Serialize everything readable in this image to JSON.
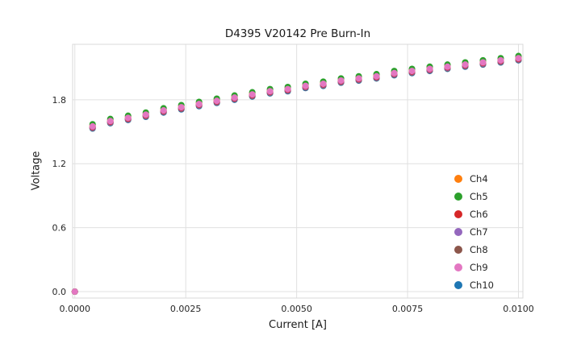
{
  "chart_data": {
    "type": "scatter",
    "title": "D4395 V20142 Pre Burn-In",
    "xlabel": "Current [A]",
    "ylabel": "Voltage",
    "xlim": [
      -5e-05,
      0.0101
    ],
    "ylim": [
      -0.06,
      2.32
    ],
    "xticks": [
      0.0,
      0.0025,
      0.005,
      0.0075,
      0.01
    ],
    "xtick_labels": [
      "0.0000",
      "0.0025",
      "0.0050",
      "0.0075",
      "0.0100"
    ],
    "yticks": [
      0.0,
      0.6,
      1.2,
      1.8
    ],
    "ytick_labels": [
      "0.0",
      "0.6",
      "1.2",
      "1.8"
    ],
    "grid": true,
    "legend_position": "inside-right",
    "x": [
      0.0,
      0.0004,
      0.0008,
      0.0012,
      0.0016,
      0.002,
      0.0024,
      0.0028,
      0.0032,
      0.0036,
      0.004,
      0.0044,
      0.0048,
      0.0052,
      0.0056,
      0.006,
      0.0064,
      0.0068,
      0.0072,
      0.0076,
      0.008,
      0.0084,
      0.0088,
      0.0092,
      0.0096,
      0.01
    ],
    "series": [
      {
        "name": "Ch4",
        "color": "#ff7f0e",
        "values": [
          0.0,
          1.56,
          1.61,
          1.64,
          1.67,
          1.71,
          1.74,
          1.77,
          1.8,
          1.83,
          1.86,
          1.89,
          1.91,
          1.94,
          1.96,
          1.99,
          2.01,
          2.03,
          2.06,
          2.08,
          2.1,
          2.12,
          2.14,
          2.16,
          2.18,
          2.2
        ]
      },
      {
        "name": "Ch5",
        "color": "#2ca02c",
        "values": [
          0.0,
          1.57,
          1.62,
          1.65,
          1.68,
          1.72,
          1.75,
          1.78,
          1.81,
          1.84,
          1.87,
          1.9,
          1.92,
          1.95,
          1.97,
          2.0,
          2.02,
          2.04,
          2.07,
          2.09,
          2.11,
          2.13,
          2.15,
          2.17,
          2.19,
          2.21
        ]
      },
      {
        "name": "Ch6",
        "color": "#d62728",
        "values": [
          0.0,
          1.545,
          1.595,
          1.625,
          1.655,
          1.695,
          1.725,
          1.755,
          1.785,
          1.815,
          1.845,
          1.875,
          1.895,
          1.925,
          1.945,
          1.975,
          1.995,
          2.015,
          2.045,
          2.065,
          2.085,
          2.105,
          2.125,
          2.145,
          2.165,
          2.185
        ]
      },
      {
        "name": "Ch7",
        "color": "#9467bd",
        "values": [
          0.0,
          1.54,
          1.59,
          1.62,
          1.65,
          1.69,
          1.72,
          1.75,
          1.78,
          1.81,
          1.84,
          1.87,
          1.89,
          1.92,
          1.94,
          1.97,
          1.99,
          2.01,
          2.04,
          2.06,
          2.08,
          2.1,
          2.12,
          2.14,
          2.16,
          2.18
        ]
      },
      {
        "name": "Ch8",
        "color": "#8c564b",
        "values": [
          0.0,
          1.535,
          1.585,
          1.615,
          1.645,
          1.685,
          1.715,
          1.745,
          1.775,
          1.805,
          1.835,
          1.865,
          1.885,
          1.915,
          1.935,
          1.965,
          1.985,
          2.005,
          2.035,
          2.055,
          2.075,
          2.095,
          2.115,
          2.135,
          2.155,
          2.175
        ]
      },
      {
        "name": "Ch9",
        "color": "#e377c2",
        "values": [
          0.0,
          1.55,
          1.6,
          1.63,
          1.66,
          1.7,
          1.73,
          1.76,
          1.79,
          1.82,
          1.85,
          1.88,
          1.9,
          1.93,
          1.95,
          1.98,
          2.0,
          2.02,
          2.05,
          2.07,
          2.09,
          2.11,
          2.13,
          2.15,
          2.17,
          2.19
        ]
      },
      {
        "name": "Ch10",
        "color": "#1f77b4",
        "values": [
          0.0,
          1.53,
          1.58,
          1.61,
          1.64,
          1.68,
          1.71,
          1.74,
          1.77,
          1.8,
          1.83,
          1.86,
          1.88,
          1.91,
          1.93,
          1.96,
          1.98,
          2.0,
          2.03,
          2.05,
          2.07,
          2.09,
          2.11,
          2.13,
          2.15,
          2.17
        ]
      }
    ],
    "colors": {
      "grid": "#e0e0e0",
      "plot_border": "#d9d9d9",
      "text": "#262626"
    }
  }
}
